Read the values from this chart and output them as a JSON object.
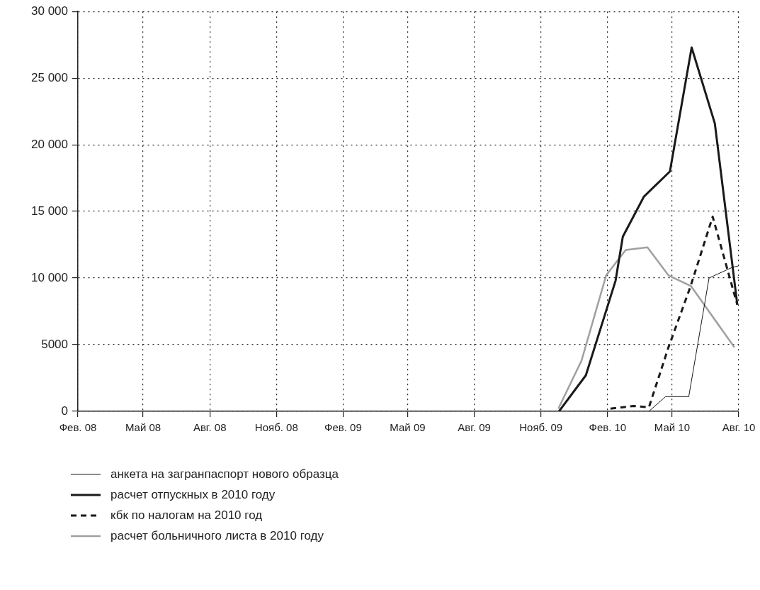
{
  "chart_data": {
    "type": "line",
    "xlim": [
      "2008-02-01",
      "2010-08-01"
    ],
    "xticks": [
      {
        "value": "2008-02",
        "label": "Фев. 08"
      },
      {
        "value": "2008-05",
        "label": "Май 08"
      },
      {
        "value": "2008-08",
        "label": "Авг. 08"
      },
      {
        "value": "2008-11",
        "label": "Нояб. 08"
      },
      {
        "value": "2009-02",
        "label": "Фев. 09"
      },
      {
        "value": "2009-05",
        "label": "Май 09"
      },
      {
        "value": "2009-08",
        "label": "Авг. 09"
      },
      {
        "value": "2009-11",
        "label": "Нояб. 09"
      },
      {
        "value": "2010-02",
        "label": "Фев. 10"
      },
      {
        "value": "2010-05",
        "label": "Май 10"
      },
      {
        "value": "2010-08",
        "label": "Авг. 10"
      }
    ],
    "ylim": [
      0,
      30000
    ],
    "yticks": [
      0,
      5000,
      {
        "value": 10000,
        "label": "10 000"
      },
      {
        "value": 15000,
        "label": "15 000"
      },
      {
        "value": 20000,
        "label": "20 000"
      },
      {
        "value": 25000,
        "label": "25 000"
      },
      {
        "value": 30000,
        "label": "30 000"
      }
    ],
    "grid": true,
    "legend": "bottom",
    "marker": "none",
    "series": [
      {
        "name": "анкета на загранпаспорт нового образца",
        "color": "#1a1a1a",
        "line_style": "solid",
        "x": [
          "2010-03-30",
          "2010-04-22",
          "2010-05-24",
          "2010-06-21",
          "2010-07-23",
          "2010-07-31"
        ],
        "values": [
          0,
          1100,
          1100,
          10000,
          10800,
          10900
        ]
      },
      {
        "name": "расчет отпускных в 2010 году",
        "color": "#1a1a1a",
        "line_style": "solid",
        "x": [
          "2009-11-26",
          "2010-01-02",
          "2010-02-12",
          "2010-02-22",
          "2010-03-23",
          "2010-04-28",
          "2010-05-28",
          "2010-06-29",
          "2010-07-30"
        ],
        "values": [
          0,
          2700,
          9800,
          13100,
          16100,
          18000,
          27300,
          21600,
          8000
        ]
      },
      {
        "name": "кбк по налогам на 2010 год",
        "color": "#1a1a1a",
        "line_style": "dashed",
        "x": [
          "2010-02-05",
          "2010-03-09",
          "2010-03-30",
          "2010-04-26",
          "2010-05-26",
          "2010-06-26",
          "2010-07-30"
        ],
        "values": [
          200,
          400,
          300,
          4800,
          9300,
          14600,
          8000
        ]
      },
      {
        "name": "расчет больничного листа в 2010 году",
        "color": "#a0a0a0",
        "line_style": "solid",
        "x": [
          "2009-11-25",
          "2009-12-27",
          "2010-01-30",
          "2010-02-26",
          "2010-03-28",
          "2010-04-26",
          "2010-05-27",
          "2010-07-26"
        ],
        "values": [
          200,
          3800,
          10200,
          12100,
          12300,
          10200,
          9400,
          4800
        ]
      }
    ]
  }
}
